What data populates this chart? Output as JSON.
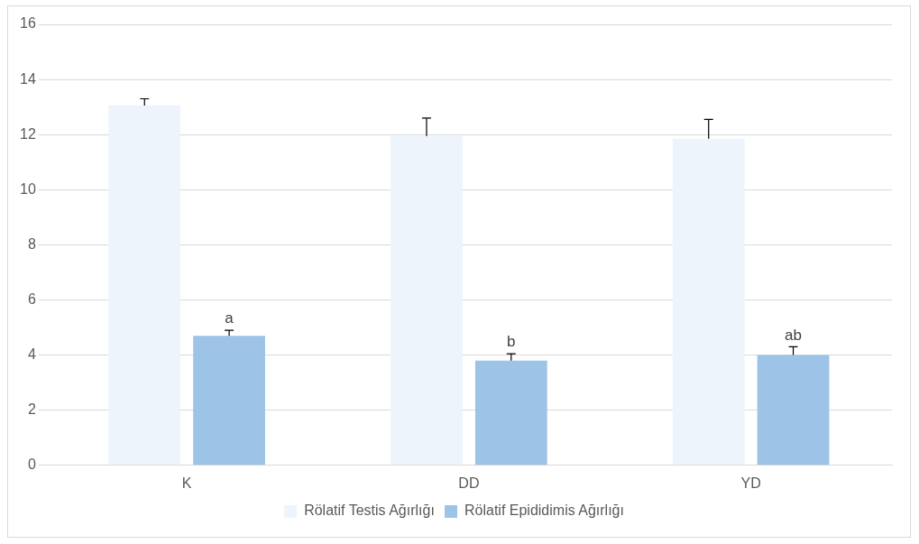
{
  "chart_data": {
    "type": "bar",
    "categories": [
      "K",
      "DD",
      "YD"
    ],
    "series": [
      {
        "name": "Rölatif Testis Ağırlığı",
        "color": "#eef4fb",
        "values": [
          13.05,
          11.95,
          11.85
        ],
        "errors": [
          [
            13.05,
            13.3
          ],
          [
            11.95,
            12.6
          ],
          [
            11.85,
            12.55
          ]
        ]
      },
      {
        "name": "Rölatif Epididimis Ağırlığı",
        "color": "#9dc3e6",
        "values": [
          4.7,
          3.8,
          4.0
        ],
        "errors": [
          [
            4.7,
            4.9
          ],
          [
            3.8,
            4.05
          ],
          [
            4.0,
            4.3
          ]
        ]
      }
    ],
    "ylim": [
      0,
      16
    ],
    "yticks": [
      0,
      2,
      4,
      6,
      8,
      10,
      12,
      14,
      16
    ],
    "grid": "y",
    "legend": "bottom",
    "annotations": [
      "a",
      "b",
      "ab"
    ]
  }
}
